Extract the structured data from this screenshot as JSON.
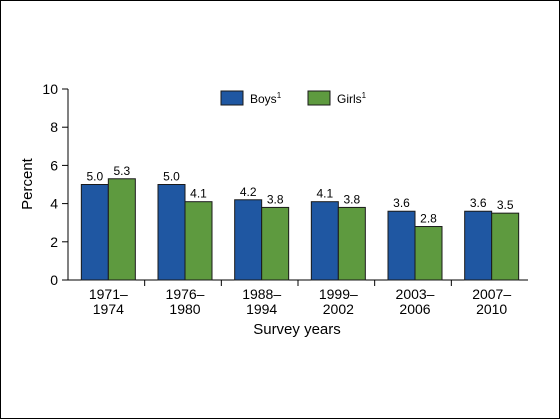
{
  "chart_data": {
    "type": "bar",
    "categories": [
      [
        "1971–",
        "1974"
      ],
      [
        "1976–",
        "1980"
      ],
      [
        "1988–",
        "1994"
      ],
      [
        "1999–",
        "2002"
      ],
      [
        "2003–",
        "2006"
      ],
      [
        "2007–",
        "2010"
      ]
    ],
    "series": [
      {
        "name": "Boys",
        "footnote": "1",
        "color": "#1f57a2",
        "values": [
          5.0,
          5.0,
          4.2,
          4.1,
          3.6,
          3.6
        ]
      },
      {
        "name": "Girls",
        "footnote": "1",
        "color": "#5e9a3f",
        "values": [
          5.3,
          4.1,
          3.8,
          3.8,
          2.8,
          3.5
        ]
      }
    ],
    "value_labels": [
      [
        "5.0",
        "5.0",
        "4.2",
        "4.1",
        "3.6",
        "3.6"
      ],
      [
        "5.3",
        "4.1",
        "3.8",
        "3.8",
        "2.8",
        "3.5"
      ]
    ],
    "xlabel": "Survey years",
    "ylabel": "Percent",
    "ylim": [
      0,
      10
    ],
    "yticks": [
      0,
      2,
      4,
      6,
      8,
      10
    ],
    "grid": false,
    "legend_position": "top-center",
    "bar_outline_color": "#1a1a1a"
  }
}
